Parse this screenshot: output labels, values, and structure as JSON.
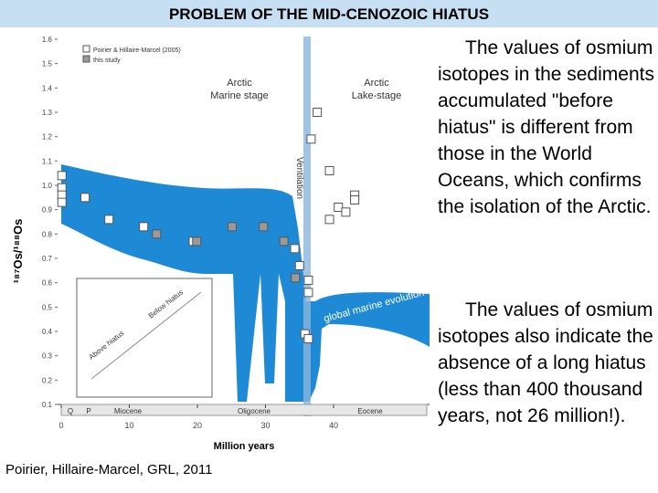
{
  "header": {
    "title": "PROBLEM OF THE MID-CENOZOIC HIATUS"
  },
  "chart_data": {
    "type": "scatter",
    "xlabel": "Million years",
    "ylabel": "¹⁸⁷Os/¹⁸⁸Os",
    "xlim": [
      0,
      47.5
    ],
    "ylim": [
      0.1,
      1.6
    ],
    "xticks": [
      0,
      10,
      20,
      30,
      40
    ],
    "yticks": [
      0.1,
      0.2,
      0.3,
      0.4,
      0.5,
      0.6,
      0.7,
      0.8,
      0.9,
      {
        "value": 1,
        "label": "1.0"
      },
      1.1,
      1.2,
      1.3,
      1.4,
      1.5,
      1.6
    ],
    "annotations": [
      "Arctic",
      "Marine stage",
      "Arctic",
      "Lake-stage",
      "Ventilation",
      "global marine evolution",
      "Q",
      "P",
      "Miocene",
      "Oligocene",
      "Eocene",
      "Below hiatus",
      "Above hiatus"
    ],
    "series": [
      {
        "name": "Poirier & Hillaire-Marcel (2005)",
        "color": "#ffffff",
        "x": [
          0.1,
          0.1,
          0.1,
          0.1,
          3.5,
          7,
          12.1,
          19.4,
          34.3,
          35,
          36.3,
          36.3,
          35.8,
          36.3,
          37.6,
          36.7,
          39.4,
          43.1,
          43.1,
          40.7,
          41.8,
          39.4
        ],
        "values": [
          1.04,
          0.99,
          0.96,
          0.93,
          0.95,
          0.86,
          0.83,
          0.77,
          0.74,
          0.67,
          0.61,
          0.56,
          0.39,
          0.37,
          1.3,
          1.19,
          1.06,
          0.96,
          0.94,
          0.91,
          0.89,
          0.86
        ]
      },
      {
        "name": "this study",
        "color": "#9a9a9a",
        "x": [
          14,
          19.9,
          25.1,
          29.7,
          32.7,
          34.4
        ],
        "values": [
          0.8,
          0.77,
          0.83,
          0.83,
          0.77,
          0.62
        ]
      }
    ]
  },
  "text": {
    "paragraphs": [
      "The values of osmium isotopes in the sediments accumulated \"before hiatus\" is different from those in the World Oceans, which confirms the isolation of the Arctic.",
      "The values of osmium isotopes also indicate the absence of a long hiatus (less than 400 thousand years, not 26 million!)."
    ],
    "citation": "Poirier, Hillaire-Marcel, GRL, 2011"
  }
}
